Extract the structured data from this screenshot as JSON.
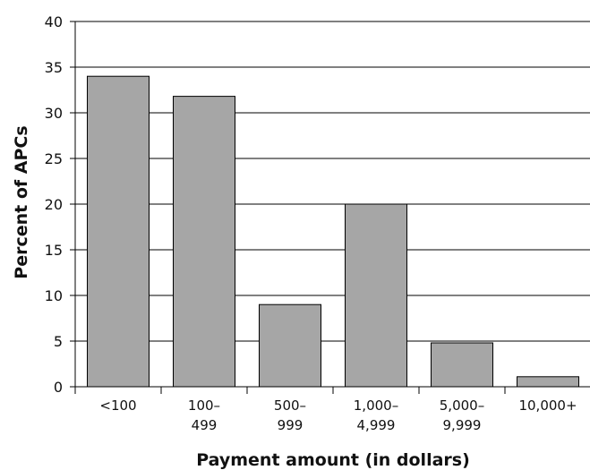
{
  "chart_data": {
    "type": "bar",
    "categories": [
      [
        "<100"
      ],
      [
        "100–",
        "499"
      ],
      [
        "500–",
        "999"
      ],
      [
        "1,000–",
        "4,999"
      ],
      [
        "5,000–",
        "9,999"
      ],
      [
        "10,000+"
      ]
    ],
    "values": [
      34,
      31.8,
      9,
      20,
      4.8,
      1.1
    ],
    "xlabel": "Payment amount (in dollars)",
    "ylabel": "Percent of APCs",
    "ylim": [
      0,
      40
    ],
    "yticks": [
      "0",
      "5",
      "10",
      "15",
      "20",
      "25",
      "30",
      "35",
      "40"
    ],
    "grid": "horizontal",
    "legend": "none"
  },
  "colors": {
    "bar_fill": "#a6a6a6",
    "bar_stroke": "#000000",
    "grid": "#000000",
    "frame": "#000000"
  }
}
